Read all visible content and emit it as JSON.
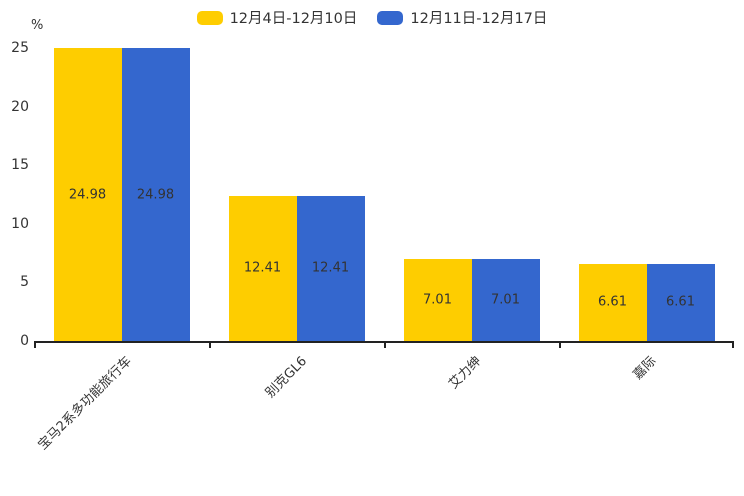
{
  "chart_data": {
    "type": "bar",
    "title": "",
    "categories": [
      "宝马2系多功能旅行车",
      "别克GL6",
      "艾力绅",
      "嘉际"
    ],
    "series": [
      {
        "name": "12月4日-12月10日",
        "color": "#FECD00",
        "values": [
          24.98,
          12.41,
          7.01,
          6.61
        ]
      },
      {
        "name": "12月11日-12月17日",
        "color": "#3467CE",
        "values": [
          24.98,
          12.41,
          7.01,
          6.61
        ]
      }
    ],
    "xlabel": "",
    "ylabel": "%",
    "yticks": [
      0,
      5,
      10,
      15,
      20,
      25
    ],
    "ylim": [
      0,
      25
    ],
    "legend_position": "top",
    "grid": false,
    "bar_labels": true,
    "label_color": "#333333",
    "axis_color": "#222222",
    "background": "#ffffff"
  }
}
